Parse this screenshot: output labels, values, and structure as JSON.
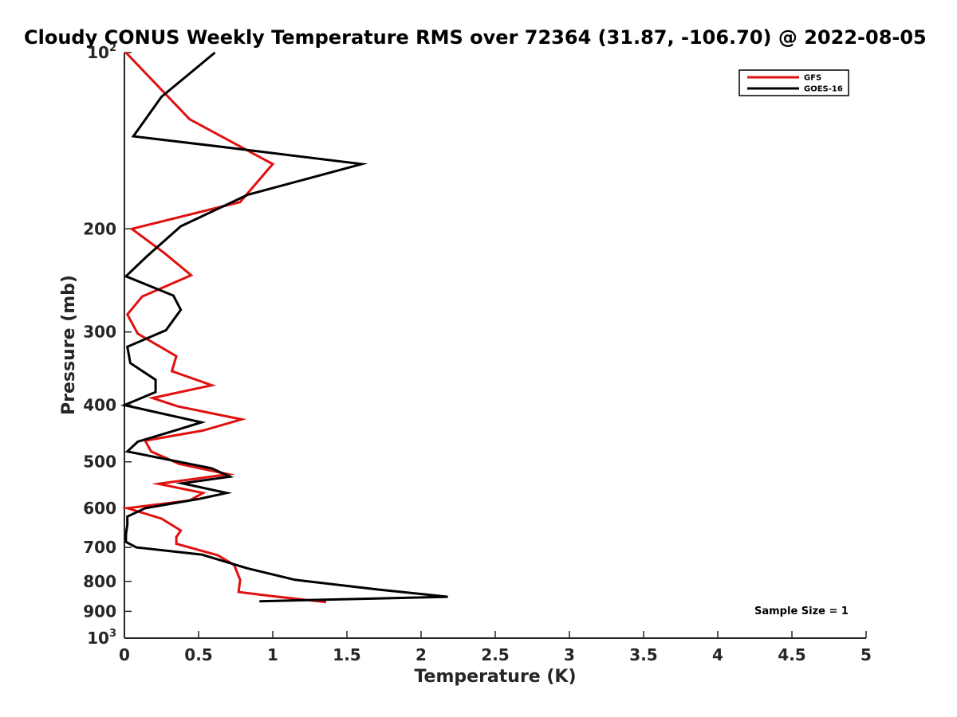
{
  "chart_data": {
    "type": "line",
    "title": "Cloudy CONUS Weekly Temperature RMS over 72364 (31.87, -106.70) @ 2022-08-05",
    "xlabel": "Temperature (K)",
    "ylabel": "Pressure (mb)",
    "xlim": [
      0,
      5
    ],
    "ylim": [
      100,
      1000
    ],
    "y_scale": "log",
    "y_reversed": true,
    "x_ticks": [
      "0",
      "0.5",
      "1",
      "1.5",
      "2",
      "2.5",
      "3",
      "3.5",
      "4",
      "4.5",
      "5"
    ],
    "y_ticks": [
      {
        "value": 100,
        "base": "10",
        "exp": "2"
      },
      {
        "value": 200,
        "label": "200"
      },
      {
        "value": 300,
        "label": "300"
      },
      {
        "value": 400,
        "label": "400"
      },
      {
        "value": 500,
        "label": "500"
      },
      {
        "value": 600,
        "label": "600"
      },
      {
        "value": 700,
        "label": "700"
      },
      {
        "value": 800,
        "label": "800"
      },
      {
        "value": 900,
        "label": "900"
      },
      {
        "value": 1000,
        "base": "10",
        "exp": "3"
      }
    ],
    "grid": false,
    "legend_position": "top-right",
    "annotation": "Sample Size = 1",
    "series": [
      {
        "name": "GFS",
        "color": "#e01010",
        "points": [
          [
            0.01,
            100
          ],
          [
            0.44,
            130
          ],
          [
            1.0,
            155
          ],
          [
            0.78,
            180
          ],
          [
            0.05,
            200
          ],
          [
            0.27,
            220
          ],
          [
            0.45,
            240
          ],
          [
            0.12,
            261
          ],
          [
            0.02,
            280
          ],
          [
            0.09,
            302
          ],
          [
            0.35,
            330
          ],
          [
            0.32,
            350
          ],
          [
            0.59,
            370
          ],
          [
            0.19,
            389
          ],
          [
            0.36,
            402
          ],
          [
            0.79,
            423
          ],
          [
            0.53,
            442
          ],
          [
            0.14,
            460
          ],
          [
            0.18,
            480
          ],
          [
            0.37,
            504
          ],
          [
            0.7,
            525
          ],
          [
            0.23,
            545
          ],
          [
            0.53,
            565
          ],
          [
            0.44,
            582
          ],
          [
            0.02,
            600
          ],
          [
            0.25,
            625
          ],
          [
            0.38,
            655
          ],
          [
            0.35,
            672
          ],
          [
            0.35,
            690
          ],
          [
            0.63,
            722
          ],
          [
            0.74,
            750
          ],
          [
            0.78,
            795
          ],
          [
            0.77,
            834
          ],
          [
            1.0,
            848
          ],
          [
            1.36,
            868
          ]
        ]
      },
      {
        "name": "GOES-16",
        "color": "#000000",
        "points": [
          [
            0.61,
            100
          ],
          [
            0.25,
            119
          ],
          [
            0.06,
            139
          ],
          [
            0.67,
            145
          ],
          [
            1.6,
            155
          ],
          [
            0.83,
            175
          ],
          [
            0.38,
            198
          ],
          [
            0.15,
            223
          ],
          [
            0.01,
            241
          ],
          [
            0.33,
            260
          ],
          [
            0.38,
            275
          ],
          [
            0.28,
            298
          ],
          [
            0.02,
            318
          ],
          [
            0.04,
            339
          ],
          [
            0.21,
            362
          ],
          [
            0.21,
            380
          ],
          [
            0.0,
            400
          ],
          [
            0.52,
            428
          ],
          [
            0.34,
            442
          ],
          [
            0.09,
            462
          ],
          [
            0.02,
            480
          ],
          [
            0.59,
            513
          ],
          [
            0.71,
            530
          ],
          [
            0.39,
            544
          ],
          [
            0.69,
            565
          ],
          [
            0.51,
            578
          ],
          [
            0.14,
            600
          ],
          [
            0.02,
            620
          ],
          [
            0.02,
            640
          ],
          [
            0.01,
            665
          ],
          [
            0.01,
            685
          ],
          [
            0.08,
            700
          ],
          [
            0.52,
            720
          ],
          [
            0.83,
            760
          ],
          [
            1.15,
            795
          ],
          [
            1.71,
            826
          ],
          [
            2.18,
            850
          ],
          [
            0.91,
            865
          ]
        ]
      }
    ]
  }
}
